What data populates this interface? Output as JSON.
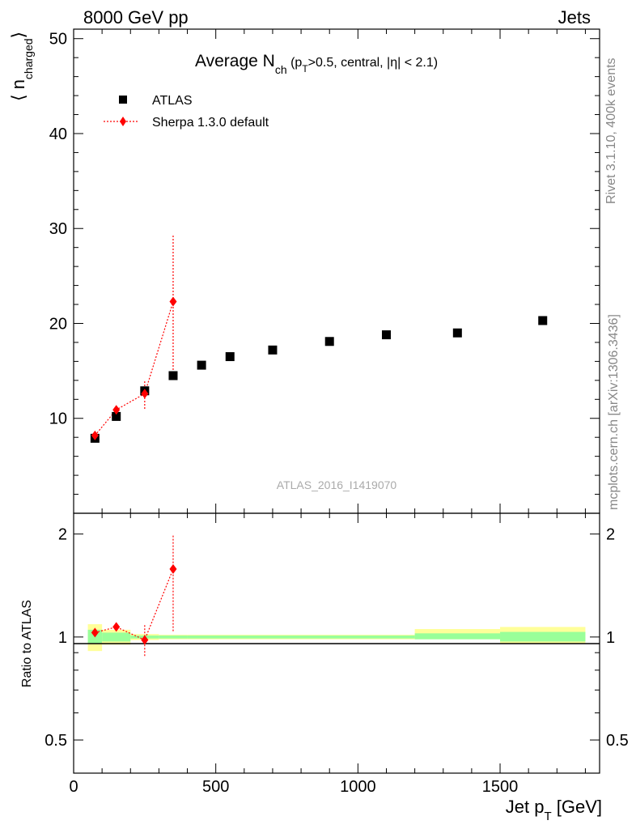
{
  "header": {
    "left": "8000 GeV pp",
    "right": "Jets"
  },
  "side_labels": {
    "top": "Rivet 3.1.10,  400k events",
    "bottom": "mcplots.cern.ch [arXiv:1306.3436]"
  },
  "watermark": "ATLAS_2016_I1419070",
  "colors": {
    "data": "#000000",
    "mc": "#ff0000",
    "band_inner": "#99ff99",
    "band_outer": "#ffff99"
  },
  "chart_data": [
    {
      "type": "scatter",
      "title": {
        "main": "Average N",
        "sub": "ch",
        "cut_open": " (p",
        "cut_sub": "T",
        "cut_rest": ">0.5, central, |",
        "eta": "η",
        "cut_close": "| < 2.1)"
      },
      "ylabel": {
        "left": "⟨ n",
        "sub": "charged",
        "right": "⟩"
      },
      "xlim": [
        0,
        1850
      ],
      "ylim": [
        0,
        51
      ],
      "yticks": [
        "10",
        "20",
        "30",
        "40",
        "50"
      ],
      "ytick_values": [
        10,
        20,
        30,
        40,
        50
      ],
      "legend_position": "top-left",
      "legend": [
        "ATLAS",
        "Sherpa 1.3.0 default"
      ],
      "series": [
        {
          "name": "ATLAS",
          "marker": "square",
          "x": [
            75,
            150,
            250,
            350,
            450,
            550,
            700,
            900,
            1100,
            1350,
            1650
          ],
          "y": [
            7.9,
            10.2,
            12.9,
            14.5,
            15.6,
            16.5,
            17.2,
            18.1,
            18.8,
            19.0,
            20.3
          ]
        },
        {
          "name": "Sherpa 1.3.0 default",
          "marker": "diamond",
          "x": [
            75,
            150,
            250,
            350
          ],
          "y": [
            8.2,
            10.9,
            12.6,
            22.3
          ],
          "err_low": [
            0.2,
            0.3,
            1.6,
            7.2
          ],
          "err_high": [
            0.2,
            0.3,
            1.3,
            7.0
          ]
        }
      ]
    },
    {
      "type": "scatter",
      "ylabel": "Ratio to ATLAS",
      "xlabel": {
        "main": "Jet p",
        "sub": "T",
        "unit": " [GeV]"
      },
      "xlim": [
        0,
        1850
      ],
      "ylim": [
        0.4,
        2.3
      ],
      "log_y": true,
      "yticks": [
        "0.5",
        "1",
        "2"
      ],
      "ytick_values": [
        0.5,
        1,
        2
      ],
      "xticks": [
        "0",
        "500",
        "1000",
        "1500"
      ],
      "xtick_values": [
        0,
        500,
        1000,
        1500
      ],
      "bands": [
        {
          "x0": 50,
          "x1": 100,
          "inner": [
            0.96,
            1.05
          ],
          "outer": [
            0.91,
            1.09
          ]
        },
        {
          "x0": 100,
          "x1": 200,
          "inner": [
            0.97,
            1.03
          ],
          "outer": [
            0.95,
            1.05
          ]
        },
        {
          "x0": 200,
          "x1": 300,
          "inner": [
            0.99,
            1.01
          ],
          "outer": [
            0.98,
            1.02
          ]
        },
        {
          "x0": 300,
          "x1": 400,
          "inner": [
            0.99,
            1.01
          ],
          "outer": [
            0.985,
            1.015
          ]
        },
        {
          "x0": 400,
          "x1": 1200,
          "inner": [
            0.99,
            1.01
          ],
          "outer": [
            0.985,
            1.015
          ]
        },
        {
          "x0": 1200,
          "x1": 1500,
          "inner": [
            0.985,
            1.025
          ],
          "outer": [
            0.985,
            1.055
          ]
        },
        {
          "x0": 1500,
          "x1": 1800,
          "inner": [
            0.97,
            1.035
          ],
          "outer": [
            0.955,
            1.07
          ]
        }
      ],
      "series": [
        {
          "name": "Sherpa 1.3.0 default",
          "marker": "diamond",
          "x": [
            75,
            150,
            250,
            350
          ],
          "y": [
            1.03,
            1.07,
            0.98,
            1.58
          ],
          "err_low": [
            0.02,
            0.02,
            0.1,
            0.54
          ],
          "err_high": [
            0.02,
            0.02,
            0.11,
            0.42
          ]
        }
      ]
    }
  ]
}
